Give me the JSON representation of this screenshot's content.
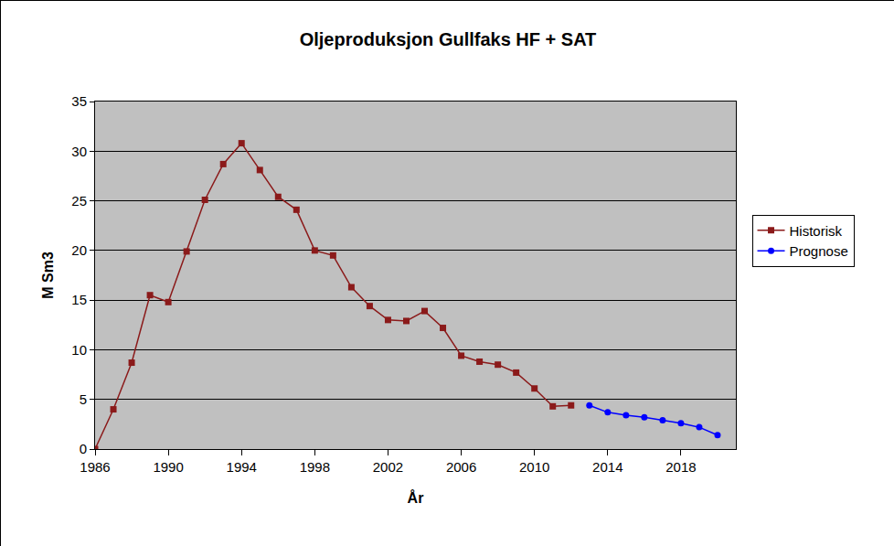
{
  "chart_data": {
    "type": "line",
    "title": "Oljeproduksjon Gullfaks HF + SAT",
    "x_label": "År",
    "y_label": "M Sm3",
    "x": [
      1986,
      1987,
      1988,
      1989,
      1990,
      1991,
      1992,
      1993,
      1994,
      1995,
      1996,
      1997,
      1998,
      1999,
      2000,
      2001,
      2002,
      2003,
      2004,
      2005,
      2006,
      2007,
      2008,
      2009,
      2010,
      2011,
      2012,
      2013,
      2014,
      2015,
      2016,
      2017,
      2018,
      2019,
      2020
    ],
    "series": [
      {
        "name": "Historisk",
        "color": "#8b1a1a",
        "marker": "square",
        "values": [
          0,
          4.0,
          8.7,
          15.5,
          14.8,
          19.9,
          25.1,
          28.7,
          30.8,
          28.1,
          25.4,
          24.1,
          20.0,
          19.5,
          16.3,
          14.4,
          13.0,
          12.9,
          13.9,
          12.2,
          9.4,
          8.8,
          8.5,
          7.7,
          6.1,
          4.3,
          4.4,
          null,
          null,
          null,
          null,
          null,
          null,
          null,
          null
        ]
      },
      {
        "name": "Prognose",
        "color": "#0000ff",
        "marker": "circle",
        "values": [
          null,
          null,
          null,
          null,
          null,
          null,
          null,
          null,
          null,
          null,
          null,
          null,
          null,
          null,
          null,
          null,
          null,
          null,
          null,
          null,
          null,
          null,
          null,
          null,
          null,
          null,
          null,
          4.4,
          3.7,
          3.4,
          3.2,
          2.9,
          2.6,
          2.2,
          1.4
        ]
      }
    ],
    "xlim": [
      1986,
      2021
    ],
    "xticks": [
      1986,
      1990,
      1994,
      1998,
      2002,
      2006,
      2010,
      2014,
      2018
    ],
    "ylim": [
      0,
      35
    ],
    "yticks": [
      0,
      5,
      10,
      15,
      20,
      25,
      30,
      35
    ],
    "grid": true,
    "legend": "right"
  }
}
